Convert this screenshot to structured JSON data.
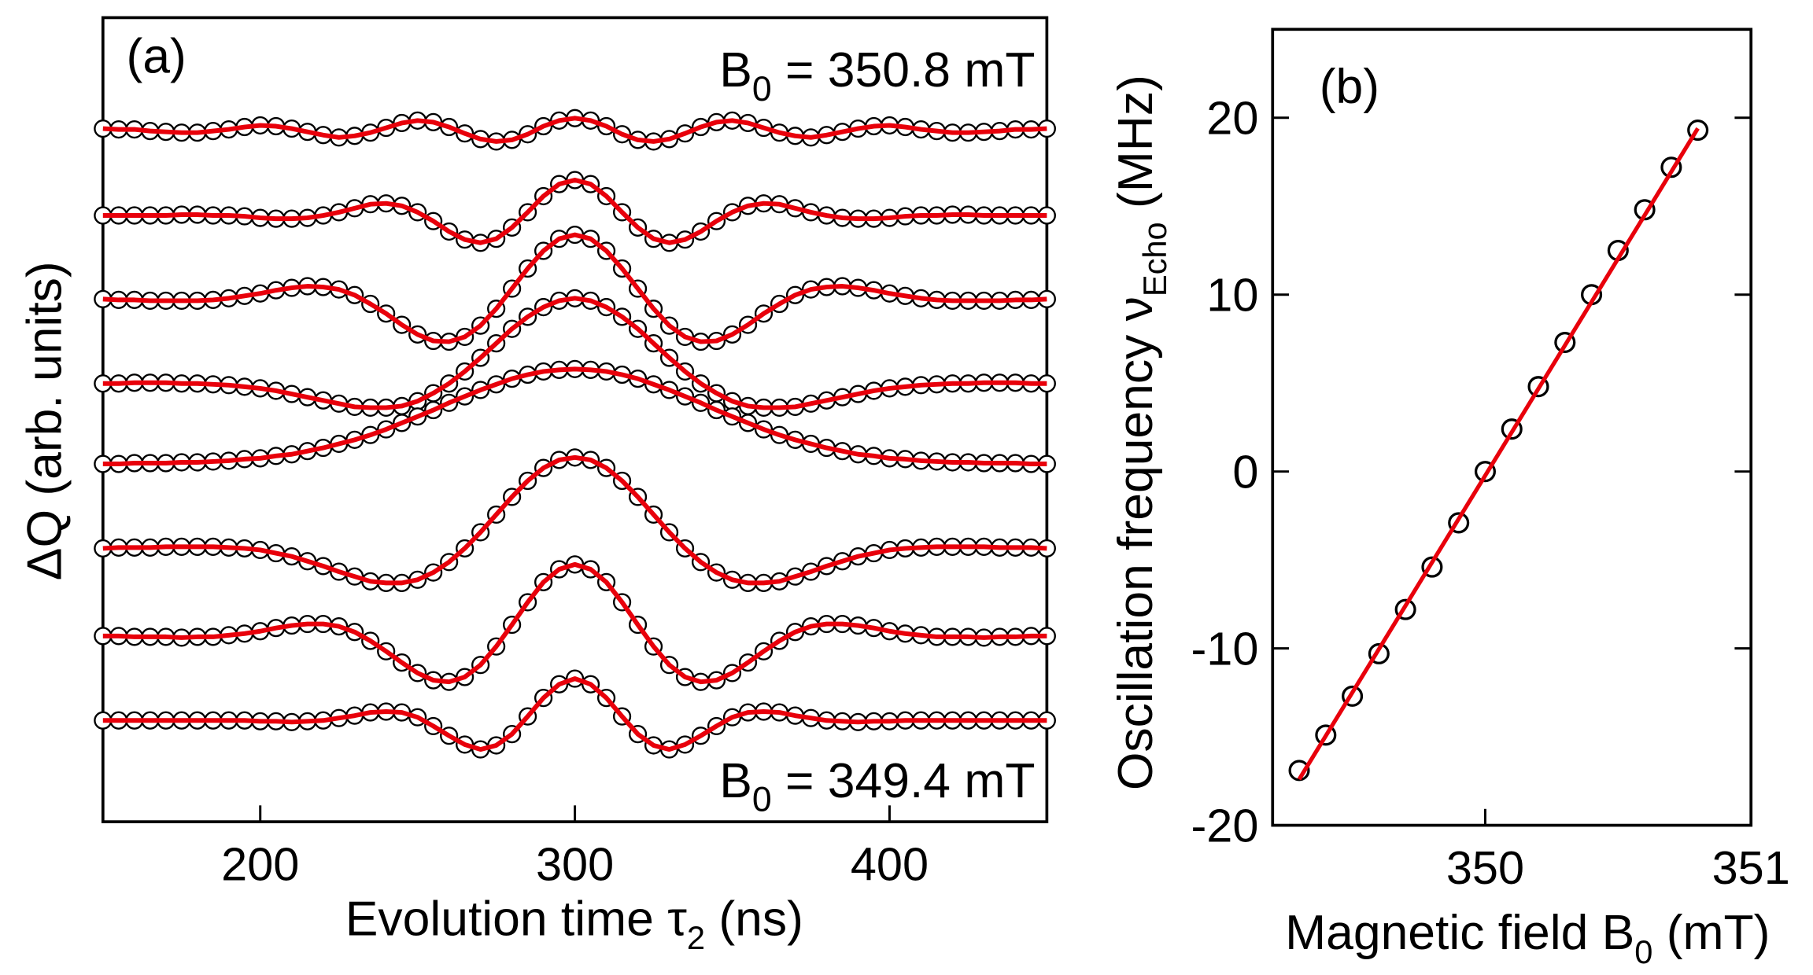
{
  "chart_data": [
    {
      "type": "line",
      "panel_label": "(a)",
      "annotations": [
        {
          "text": "B",
          "sub": "0",
          "after": " = 350.8 mT"
        },
        {
          "text": "B",
          "sub": "0",
          "after": " = 349.4 mT"
        }
      ],
      "x_label": {
        "text": "Evolution time τ",
        "sub": "2",
        "after": " (ns)"
      },
      "y_label": "ΔQ (arb. units)",
      "marker_color": "#000000",
      "line_color": "#e8000b",
      "xlim": [
        150,
        450
      ],
      "xticks": [
        200,
        300,
        400
      ],
      "ylim": [
        0,
        100
      ],
      "x": [
        150,
        155,
        160,
        165,
        170,
        175,
        180,
        185,
        190,
        195,
        200,
        205,
        210,
        215,
        220,
        225,
        230,
        235,
        240,
        245,
        250,
        255,
        260,
        265,
        270,
        275,
        280,
        285,
        290,
        295,
        300,
        305,
        310,
        315,
        320,
        325,
        330,
        335,
        340,
        345,
        350,
        355,
        360,
        365,
        370,
        375,
        380,
        385,
        390,
        395,
        400,
        405,
        410,
        415,
        420,
        425,
        430,
        435,
        440,
        445,
        450
      ],
      "series": [
        {
          "values": [
            86.2,
            86.1,
            86.1,
            85.9,
            85.8,
            85.7,
            85.7,
            85.9,
            86.1,
            86.4,
            86.6,
            86.5,
            86.2,
            85.8,
            85.4,
            85.1,
            85.3,
            85.7,
            86.3,
            86.9,
            87.2,
            87.0,
            86.4,
            85.6,
            84.9,
            84.6,
            84.8,
            85.5,
            86.5,
            87.2,
            87.5,
            87.2,
            86.5,
            85.5,
            84.8,
            84.6,
            84.9,
            85.6,
            86.4,
            87.0,
            87.2,
            86.9,
            86.3,
            85.7,
            85.3,
            85.1,
            85.4,
            85.8,
            86.2,
            86.5,
            86.6,
            86.4,
            86.1,
            85.9,
            85.7,
            85.7,
            85.8,
            85.9,
            86.1,
            86.1,
            86.2
          ]
        },
        {
          "values": [
            75.4,
            75.4,
            75.4,
            75.4,
            75.4,
            75.5,
            75.5,
            75.4,
            75.4,
            75.3,
            75.1,
            75.0,
            75.0,
            75.1,
            75.4,
            75.8,
            76.3,
            76.8,
            76.9,
            76.6,
            75.8,
            74.7,
            73.4,
            72.4,
            72.0,
            72.5,
            73.9,
            75.8,
            77.8,
            79.3,
            79.8,
            79.3,
            77.8,
            75.8,
            73.9,
            72.5,
            72.0,
            72.4,
            73.4,
            74.7,
            75.8,
            76.6,
            76.9,
            76.8,
            76.3,
            75.8,
            75.4,
            75.1,
            75.0,
            75.0,
            75.1,
            75.3,
            75.4,
            75.4,
            75.5,
            75.5,
            75.4,
            75.4,
            75.4,
            75.4,
            75.4
          ]
        },
        {
          "values": [
            65.0,
            64.9,
            64.9,
            64.8,
            64.8,
            64.8,
            64.8,
            64.9,
            65.1,
            65.4,
            65.7,
            66.1,
            66.4,
            66.6,
            66.5,
            66.2,
            65.5,
            64.4,
            63.2,
            61.8,
            60.6,
            59.8,
            59.7,
            60.3,
            61.7,
            63.8,
            66.3,
            68.8,
            71.0,
            72.5,
            73.0,
            72.5,
            71.0,
            68.8,
            66.3,
            63.8,
            61.7,
            60.3,
            59.7,
            59.8,
            60.6,
            61.8,
            63.2,
            64.4,
            65.5,
            66.2,
            66.5,
            66.6,
            66.4,
            66.1,
            65.7,
            65.4,
            65.1,
            64.9,
            64.8,
            64.8,
            64.8,
            64.8,
            64.9,
            64.9,
            65.0
          ]
        },
        {
          "values": [
            54.5,
            54.5,
            54.6,
            54.6,
            54.6,
            54.5,
            54.5,
            54.4,
            54.3,
            54.1,
            53.9,
            53.6,
            53.2,
            52.8,
            52.4,
            52.0,
            51.6,
            51.5,
            51.5,
            51.7,
            52.3,
            53.3,
            54.5,
            56.0,
            57.7,
            59.5,
            61.3,
            62.8,
            64.0,
            64.8,
            65.1,
            64.8,
            64.0,
            62.8,
            61.3,
            59.5,
            57.7,
            56.0,
            54.5,
            53.3,
            52.3,
            51.7,
            51.5,
            51.5,
            51.6,
            52.0,
            52.4,
            52.8,
            53.2,
            53.6,
            53.9,
            54.1,
            54.3,
            54.4,
            54.5,
            54.5,
            54.6,
            54.6,
            54.6,
            54.5,
            54.5
          ]
        },
        {
          "values": [
            44.5,
            44.5,
            44.6,
            44.6,
            44.6,
            44.7,
            44.7,
            44.8,
            44.9,
            45.1,
            45.2,
            45.5,
            45.7,
            46.1,
            46.5,
            47.0,
            47.5,
            48.1,
            48.8,
            49.6,
            50.4,
            51.2,
            52.1,
            52.9,
            53.7,
            54.4,
            55.1,
            55.6,
            56.0,
            56.2,
            56.3,
            56.2,
            56.0,
            55.6,
            55.1,
            54.4,
            53.7,
            52.9,
            52.1,
            51.2,
            50.4,
            49.6,
            48.8,
            48.1,
            47.5,
            47.0,
            46.5,
            46.1,
            45.7,
            45.5,
            45.2,
            45.1,
            44.9,
            44.8,
            44.7,
            44.7,
            44.6,
            44.6,
            44.6,
            44.5,
            44.5
          ]
        },
        {
          "values": [
            34.0,
            34.1,
            34.1,
            34.1,
            34.2,
            34.2,
            34.2,
            34.2,
            34.1,
            34.0,
            33.8,
            33.4,
            33.0,
            32.4,
            31.8,
            31.1,
            30.5,
            29.9,
            29.7,
            29.7,
            30.1,
            31.0,
            32.3,
            34.0,
            36.0,
            38.2,
            40.4,
            42.4,
            44.0,
            45.0,
            45.3,
            45.0,
            44.0,
            42.4,
            40.4,
            38.2,
            36.0,
            34.0,
            32.3,
            31.0,
            30.1,
            29.7,
            29.7,
            29.9,
            30.5,
            31.1,
            31.8,
            32.4,
            33.0,
            33.4,
            33.8,
            34.0,
            34.1,
            34.2,
            34.2,
            34.2,
            34.2,
            34.1,
            34.1,
            34.1,
            34.0
          ]
        },
        {
          "values": [
            23.1,
            23.1,
            23.0,
            23.0,
            23.0,
            22.9,
            23.0,
            23.0,
            23.2,
            23.4,
            23.7,
            24.1,
            24.4,
            24.6,
            24.6,
            24.3,
            23.6,
            22.5,
            21.2,
            19.8,
            18.5,
            17.6,
            17.4,
            18.0,
            19.5,
            21.8,
            24.5,
            27.3,
            29.8,
            31.4,
            32.0,
            31.4,
            29.8,
            27.3,
            24.5,
            21.8,
            19.5,
            18.0,
            17.4,
            17.6,
            18.5,
            19.8,
            21.2,
            22.5,
            23.6,
            24.3,
            24.6,
            24.6,
            24.4,
            24.1,
            23.7,
            23.4,
            23.2,
            23.0,
            23.0,
            23.0,
            22.9,
            23.0,
            23.0,
            23.1,
            23.1
          ]
        },
        {
          "values": [
            12.6,
            12.6,
            12.6,
            12.6,
            12.6,
            12.6,
            12.6,
            12.6,
            12.6,
            12.6,
            12.5,
            12.5,
            12.4,
            12.5,
            12.6,
            12.9,
            13.2,
            13.6,
            13.7,
            13.6,
            13.0,
            11.9,
            10.7,
            9.6,
            9.0,
            9.5,
            10.9,
            13.1,
            15.4,
            17.1,
            17.8,
            17.1,
            15.4,
            13.1,
            10.9,
            9.5,
            9.0,
            9.6,
            10.7,
            11.9,
            13.0,
            13.6,
            13.7,
            13.6,
            13.2,
            12.9,
            12.6,
            12.5,
            12.4,
            12.5,
            12.5,
            12.6,
            12.6,
            12.6,
            12.6,
            12.6,
            12.6,
            12.6,
            12.6,
            12.6,
            12.6
          ]
        }
      ]
    },
    {
      "type": "scatter",
      "panel_label": "(b)",
      "x_label": {
        "text": "Magnetic field B",
        "sub": "0",
        "after": " (mT)"
      },
      "y_label": {
        "text": "Oscillation frequency ν",
        "sub": "Echo",
        "after": " (MHz)"
      },
      "marker_color": "#000000",
      "line_color": "#e8000b",
      "xlim": [
        349.2,
        351.0
      ],
      "xticks": [
        350,
        351
      ],
      "ylim": [
        -20,
        25
      ],
      "yticks": [
        -20,
        -10,
        0,
        10,
        20
      ],
      "x": [
        349.3,
        349.4,
        349.5,
        349.6,
        349.7,
        349.8,
        349.9,
        350.0,
        350.1,
        350.2,
        350.3,
        350.4,
        350.5,
        350.6,
        350.7,
        350.8
      ],
      "values": [
        -16.9,
        -14.9,
        -12.7,
        -10.3,
        -7.8,
        -5.4,
        -2.9,
        0.0,
        2.4,
        4.8,
        7.3,
        10.0,
        12.5,
        14.8,
        17.2,
        19.3
      ],
      "fit": {
        "x": [
          349.3,
          350.8
        ],
        "values": [
          -17.4,
          19.4
        ]
      }
    }
  ]
}
